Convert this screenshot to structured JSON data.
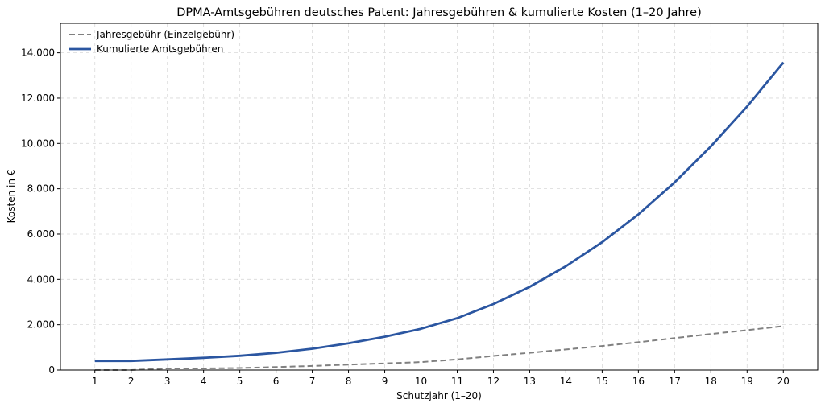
{
  "chart_data": {
    "type": "line",
    "title": "DPMA-Amtsgebühren deutsches Patent: Jahresgebühren & kumulierte Kosten (1–20 Jahre)",
    "xlabel": "Schutzjahr (1–20)",
    "ylabel": "Kosten in €",
    "x": [
      1,
      2,
      3,
      4,
      5,
      6,
      7,
      8,
      9,
      10,
      11,
      12,
      13,
      14,
      15,
      16,
      17,
      18,
      19,
      20
    ],
    "x_tick_labels": [
      "1",
      "2",
      "3",
      "4",
      "5",
      "6",
      "7",
      "8",
      "9",
      "10",
      "11",
      "12",
      "13",
      "14",
      "15",
      "16",
      "17",
      "18",
      "19",
      "20"
    ],
    "xlim": [
      0.05,
      20.95
    ],
    "ylim": [
      0,
      15300
    ],
    "y_ticks": [
      0,
      2000,
      4000,
      6000,
      8000,
      10000,
      12000,
      14000
    ],
    "y_tick_labels": [
      "0",
      "2.000",
      "4.000",
      "6.000",
      "8.000",
      "10.000",
      "12.000",
      "14.000"
    ],
    "grid": true,
    "legend_position": "top-left",
    "series": [
      {
        "name": "Jahresgebühr (Einzelgebühr)",
        "style": "dashed",
        "color": "#808080",
        "values": [
          0,
          0,
          70,
          70,
          90,
          130,
          180,
          240,
          290,
          350,
          470,
          620,
          760,
          910,
          1060,
          1230,
          1410,
          1590,
          1760,
          1940
        ]
      },
      {
        "name": "Kumulierte Amtsgebühren",
        "style": "solid",
        "color": "#2b56a1",
        "values": [
          400,
          400,
          470,
          540,
          630,
          760,
          940,
          1180,
          1470,
          1820,
          2290,
          2910,
          3670,
          4580,
          5640,
          6870,
          8280,
          9870,
          11630,
          13570
        ]
      }
    ]
  }
}
